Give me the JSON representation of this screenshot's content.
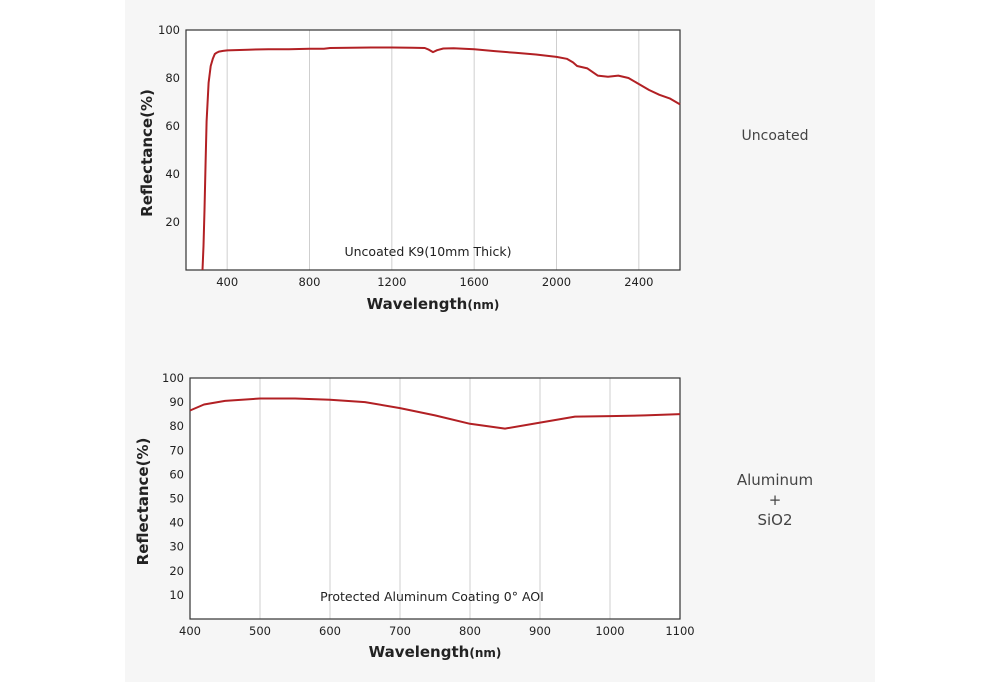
{
  "side_labels": {
    "top": "Uncoated",
    "bottom_lines": [
      "Aluminum",
      "+",
      "SiO2"
    ]
  },
  "colors": {
    "curve": "#b22024",
    "grid": "#cfcfcf",
    "background": "#f6f6f6"
  },
  "chart_data": [
    {
      "type": "line",
      "xlabel_main": "Wavelength",
      "xlabel_unit": "(nm)",
      "ylabel": "Reflectance(%)",
      "annotation": "Uncoated K9(10mm Thick)",
      "xlim": [
        200,
        2600
      ],
      "ylim": [
        0,
        100
      ],
      "xticks": [
        400,
        800,
        1200,
        1600,
        2000,
        2400
      ],
      "yticks": [
        20,
        40,
        60,
        80,
        100
      ],
      "grid": "vertical",
      "series": [
        {
          "x": [
            280,
            285,
            290,
            295,
            300,
            310,
            320,
            330,
            340,
            350,
            360,
            380,
            400,
            500,
            600,
            700,
            800,
            870,
            900,
            1000,
            1100,
            1200,
            1300,
            1360,
            1380,
            1400,
            1420,
            1450,
            1500,
            1600,
            1700,
            1800,
            1900,
            2000,
            2050,
            2080,
            2100,
            2150,
            2200,
            2250,
            2300,
            2350,
            2400,
            2450,
            2500,
            2550,
            2600
          ],
          "y": [
            0,
            10,
            25,
            45,
            62,
            78,
            85,
            88,
            90,
            90.6,
            91,
            91.3,
            91.5,
            91.8,
            92,
            92,
            92.2,
            92.2,
            92.5,
            92.6,
            92.7,
            92.7,
            92.6,
            92.5,
            91.8,
            90.8,
            91.6,
            92.3,
            92.4,
            92,
            91.2,
            90.5,
            89.8,
            88.8,
            88,
            86.5,
            85,
            84,
            81,
            80.5,
            81,
            80,
            77.5,
            75,
            73,
            71.5,
            69
          ]
        }
      ]
    },
    {
      "type": "line",
      "xlabel_main": "Wavelength",
      "xlabel_unit": "(nm)",
      "ylabel": "Reflectance(%)",
      "annotation": "Protected Aluminum Coating  0°  AOI",
      "xlim": [
        400,
        1100
      ],
      "ylim": [
        0,
        100
      ],
      "xticks": [
        400,
        500,
        600,
        700,
        800,
        900,
        1000,
        1100
      ],
      "yticks": [
        10,
        20,
        30,
        40,
        50,
        60,
        70,
        80,
        90,
        100
      ],
      "grid": "vertical",
      "series": [
        {
          "x": [
            400,
            420,
            450,
            500,
            550,
            600,
            650,
            700,
            750,
            800,
            850,
            900,
            950,
            1000,
            1050,
            1100
          ],
          "y": [
            86.5,
            89,
            90.5,
            91.5,
            91.5,
            91,
            90,
            87.5,
            84.5,
            81,
            79,
            81.5,
            84,
            84.2,
            84.5,
            85
          ]
        }
      ]
    }
  ]
}
